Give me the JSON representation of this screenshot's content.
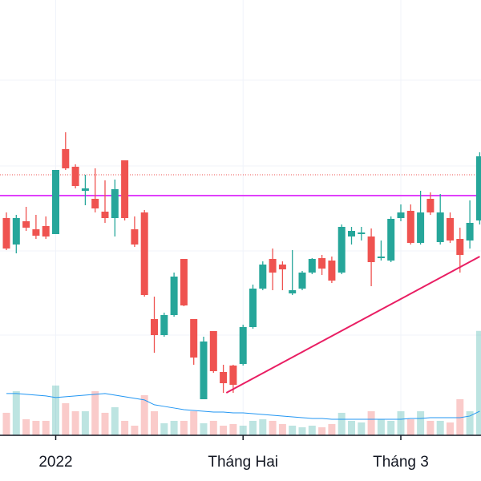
{
  "chart_data": {
    "type": "candlestick",
    "categories": [
      null,
      null,
      null,
      null,
      null,
      "2022",
      null,
      null,
      null,
      null,
      null,
      null,
      null,
      null,
      null,
      null,
      null,
      null,
      null,
      null,
      null,
      null,
      null,
      null,
      "Tháng Hai",
      null,
      null,
      null,
      null,
      null,
      null,
      null,
      null,
      null,
      null,
      null,
      null,
      null,
      null,
      null,
      "Tháng 3",
      null,
      null,
      null,
      null,
      null,
      null,
      null,
      null
    ],
    "candles": [
      {
        "open": 328,
        "high": 335,
        "low": 288,
        "close": 290
      },
      {
        "open": 295,
        "high": 332,
        "low": 284,
        "close": 328
      },
      {
        "open": 324,
        "high": 342,
        "low": 312,
        "close": 316
      },
      {
        "open": 314,
        "high": 332,
        "low": 302,
        "close": 306
      },
      {
        "open": 318,
        "high": 330,
        "low": 302,
        "close": 305
      },
      {
        "open": 308,
        "high": 388,
        "low": 308,
        "close": 388
      },
      {
        "open": 414,
        "high": 435,
        "low": 388,
        "close": 390
      },
      {
        "open": 392,
        "high": 395,
        "low": 365,
        "close": 368
      },
      {
        "open": 362,
        "high": 382,
        "low": 344,
        "close": 365
      },
      {
        "open": 352,
        "high": 390,
        "low": 335,
        "close": 340
      },
      {
        "open": 336,
        "high": 375,
        "low": 322,
        "close": 328
      },
      {
        "open": 328,
        "high": 376,
        "low": 305,
        "close": 364
      },
      {
        "open": 400,
        "high": 400,
        "low": 325,
        "close": 328
      },
      {
        "open": 314,
        "high": 330,
        "low": 292,
        "close": 295
      },
      {
        "open": 335,
        "high": 338,
        "low": 230,
        "close": 232
      },
      {
        "open": 202,
        "high": 230,
        "low": 160,
        "close": 182
      },
      {
        "open": 182,
        "high": 210,
        "low": 180,
        "close": 207
      },
      {
        "open": 207,
        "high": 260,
        "low": 205,
        "close": 255
      },
      {
        "open": 277,
        "high": 277,
        "low": 218,
        "close": 219
      },
      {
        "open": 202,
        "high": 202,
        "low": 145,
        "close": 154
      },
      {
        "open": 102,
        "high": 180,
        "low": 102,
        "close": 174
      },
      {
        "open": 187,
        "high": 187,
        "low": 135,
        "close": 137
      },
      {
        "open": 136,
        "high": 145,
        "low": 110,
        "close": 122
      },
      {
        "open": 144,
        "high": 145,
        "low": 110,
        "close": 120
      },
      {
        "open": 146,
        "high": 195,
        "low": 144,
        "close": 192
      },
      {
        "open": 192,
        "high": 245,
        "low": 190,
        "close": 240
      },
      {
        "open": 240,
        "high": 274,
        "low": 238,
        "close": 270
      },
      {
        "open": 277,
        "high": 290,
        "low": 238,
        "close": 260
      },
      {
        "open": 270,
        "high": 274,
        "low": 238,
        "close": 264
      },
      {
        "open": 234,
        "high": 288,
        "low": 232,
        "close": 238
      },
      {
        "open": 240,
        "high": 262,
        "low": 238,
        "close": 260
      },
      {
        "open": 260,
        "high": 278,
        "low": 258,
        "close": 277
      },
      {
        "open": 278,
        "high": 282,
        "low": 257,
        "close": 265
      },
      {
        "open": 275,
        "high": 280,
        "low": 247,
        "close": 250
      },
      {
        "open": 260,
        "high": 320,
        "low": 258,
        "close": 317
      },
      {
        "open": 305,
        "high": 317,
        "low": 295,
        "close": 312
      },
      {
        "open": 308,
        "high": 317,
        "low": 300,
        "close": 310
      },
      {
        "open": 305,
        "high": 315,
        "low": 243,
        "close": 273
      },
      {
        "open": 278,
        "high": 300,
        "low": 275,
        "close": 280
      },
      {
        "open": 275,
        "high": 330,
        "low": 273,
        "close": 327
      },
      {
        "open": 328,
        "high": 345,
        "low": 324,
        "close": 335
      },
      {
        "open": 337,
        "high": 345,
        "low": 295,
        "close": 297
      },
      {
        "open": 297,
        "high": 362,
        "low": 295,
        "close": 335
      },
      {
        "open": 352,
        "high": 360,
        "low": 332,
        "close": 335
      },
      {
        "open": 298,
        "high": 358,
        "low": 295,
        "close": 335
      },
      {
        "open": 328,
        "high": 335,
        "low": 297,
        "close": 300
      },
      {
        "open": 302,
        "high": 316,
        "low": 260,
        "close": 282
      },
      {
        "open": 300,
        "high": 350,
        "low": 290,
        "close": 322
      },
      {
        "open": 325,
        "high": 410,
        "low": 320,
        "close": 405
      }
    ],
    "volume": [
      28,
      55,
      20,
      18,
      18,
      62,
      40,
      30,
      30,
      55,
      28,
      35,
      18,
      12,
      50,
      30,
      15,
      18,
      18,
      30,
      15,
      18,
      12,
      14,
      12,
      18,
      20,
      18,
      14,
      12,
      10,
      12,
      10,
      14,
      28,
      18,
      16,
      30,
      20,
      18,
      30,
      20,
      30,
      18,
      18,
      16,
      45,
      30,
      130
    ],
    "volume_ma": [
      52,
      52,
      51,
      50,
      49,
      47,
      48,
      49,
      50,
      51,
      52,
      50,
      48,
      46,
      44,
      38,
      36,
      34,
      32,
      31,
      30,
      29,
      29,
      28,
      28,
      27,
      26,
      25,
      24,
      23,
      22,
      21,
      21,
      20,
      20,
      20,
      20,
      20,
      20,
      20,
      20,
      21,
      21,
      22,
      22,
      22,
      22,
      24,
      30
    ],
    "up_color": "#26a69a",
    "down_color": "#ef5350",
    "volume_ma_color": "#2196f3",
    "ylim": [
      0,
      600
    ],
    "volume_lim": [
      0,
      542
    ],
    "grid_lines": [
      500,
      393,
      287,
      182
    ],
    "x_grid": true,
    "levels": [
      {
        "value": 356,
        "color": "#e040fb",
        "style": "solid"
      },
      {
        "value": 382,
        "color": "#ef5350",
        "style": "dotted"
      }
    ],
    "trend_line": {
      "x": [
        22.3,
        48
      ],
      "y": [
        110,
        280
      ],
      "color": "#e91e63"
    }
  }
}
